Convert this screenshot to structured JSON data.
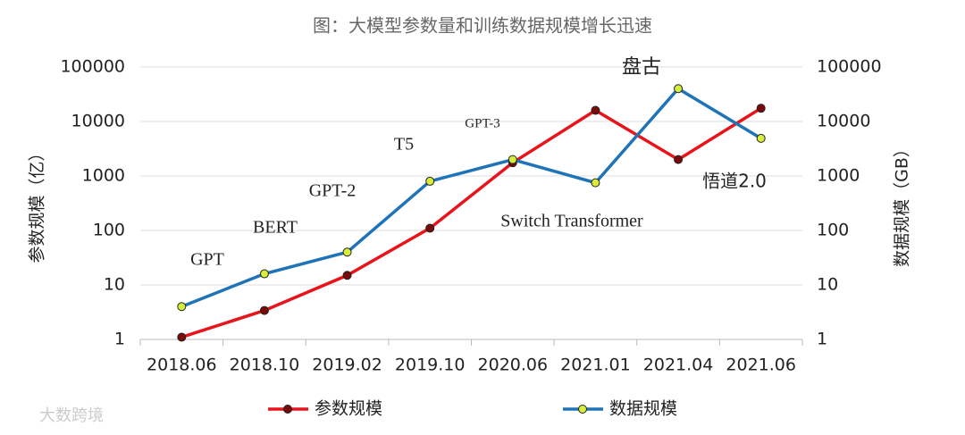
{
  "chart_data": {
    "type": "line",
    "title": "图：大模型参数量和训练数据规模增长迅速",
    "ylabel": "参数规模（亿）",
    "y2label": "数据规模（GB）",
    "categories": [
      "2018.06",
      "2018.10",
      "2019.02",
      "2019.10",
      "2020.06",
      "2021.01",
      "2021.04",
      "2021.06"
    ],
    "series": [
      {
        "name": "参数规模",
        "color": "#e8141b",
        "marker_color": "#7a0a0a",
        "values": [
          1.1,
          3.4,
          15,
          110,
          1750,
          16000,
          2000,
          17500
        ]
      },
      {
        "name": "数据规模",
        "color": "#1f73b7",
        "marker_color": "#d8ec3a",
        "axis": "y2",
        "values": [
          4,
          16,
          40,
          800,
          2000,
          750,
          40000,
          4900
        ]
      }
    ],
    "ylim": [
      1,
      100000
    ],
    "yticks": [
      1,
      10,
      100,
      1000,
      10000,
      100000
    ],
    "y2lim": [
      1,
      100000
    ],
    "y2ticks": [
      1,
      10,
      100,
      1000,
      10000,
      100000
    ],
    "log_scale": true,
    "grid": true,
    "legend": "bottom",
    "annotations": [
      "GPT",
      "BERT",
      "GPT-2",
      "T5",
      "GPT-3",
      "Switch Transformer",
      "盘古",
      "悟道2.0"
    ],
    "watermark": "大数跨境"
  }
}
